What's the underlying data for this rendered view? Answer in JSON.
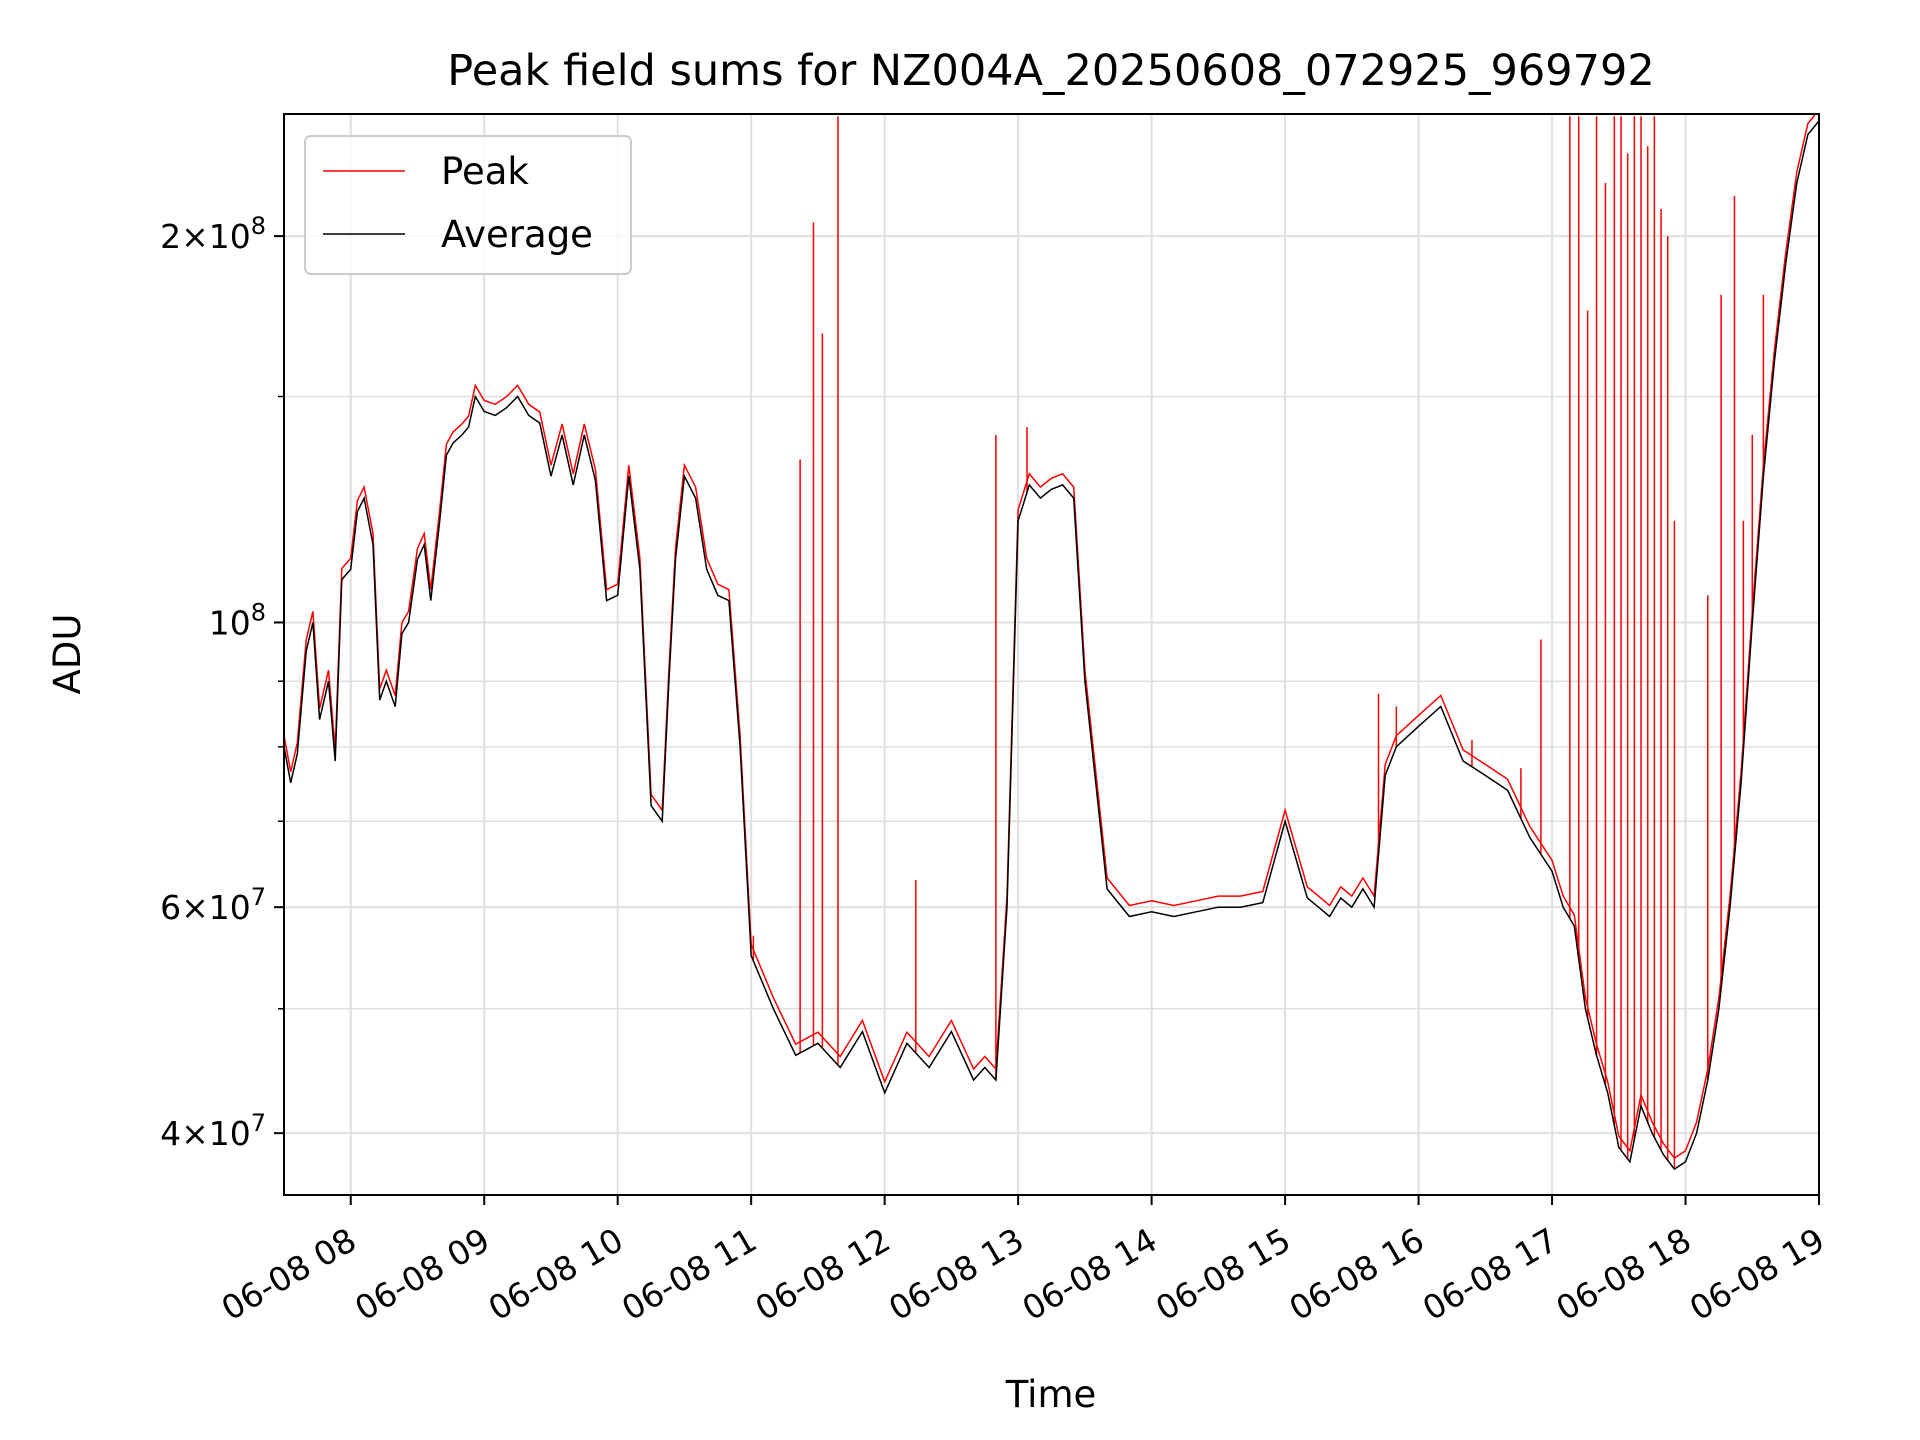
{
  "chart_data": {
    "type": "line",
    "title": "Peak field sums for NZ004A_20250608_072925_969792",
    "xlabel": "Time",
    "ylabel": "ADU",
    "yscale": "log",
    "xlim": [
      "06-08 07:30",
      "06-08 19:00"
    ],
    "ylim": [
      35800000,
      249000000
    ],
    "grid": true,
    "legend": {
      "position": "upper-left",
      "entries": [
        "Peak",
        "Average"
      ]
    },
    "x_ticks": [
      "06-08 08",
      "06-08 09",
      "06-08 10",
      "06-08 11",
      "06-08 12",
      "06-08 13",
      "06-08 14",
      "06-08 15",
      "06-08 16",
      "06-08 17",
      "06-08 18",
      "06-08 19"
    ],
    "y_ticks": [
      {
        "mantissa": "2",
        "exponent": "8",
        "value": 200000000
      },
      {
        "mantissa": "",
        "exponent": "8",
        "value": 100000000
      },
      {
        "mantissa": "6",
        "exponent": "7",
        "value": 60000000
      },
      {
        "mantissa": "4",
        "exponent": "7",
        "value": 40000000
      }
    ],
    "minor_y_values": [
      90000000,
      80000000,
      70000000,
      50000000,
      150000000
    ],
    "colors": {
      "Peak": "#ff0000",
      "Average": "#000000",
      "grid": "#e0e0e0"
    },
    "series": [
      {
        "name": "Average",
        "x": [
          "06-08 07:30",
          "06-08 07:33",
          "06-08 07:36",
          "06-08 07:40",
          "06-08 07:43",
          "06-08 07:46",
          "06-08 07:50",
          "06-08 07:53",
          "06-08 07:56",
          "06-08 08:00",
          "06-08 08:03",
          "06-08 08:06",
          "06-08 08:10",
          "06-08 08:13",
          "06-08 08:16",
          "06-08 08:20",
          "06-08 08:23",
          "06-08 08:26",
          "06-08 08:30",
          "06-08 08:33",
          "06-08 08:36",
          "06-08 08:40",
          "06-08 08:43",
          "06-08 08:46",
          "06-08 08:50",
          "06-08 08:53",
          "06-08 08:56",
          "06-08 09:00",
          "06-08 09:05",
          "06-08 09:10",
          "06-08 09:15",
          "06-08 09:20",
          "06-08 09:25",
          "06-08 09:30",
          "06-08 09:35",
          "06-08 09:40",
          "06-08 09:45",
          "06-08 09:50",
          "06-08 09:55",
          "06-08 10:00",
          "06-08 10:05",
          "06-08 10:10",
          "06-08 10:15",
          "06-08 10:20",
          "06-08 10:23",
          "06-08 10:26",
          "06-08 10:30",
          "06-08 10:35",
          "06-08 10:40",
          "06-08 10:45",
          "06-08 10:50",
          "06-08 10:55",
          "06-08 11:00",
          "06-08 11:10",
          "06-08 11:20",
          "06-08 11:30",
          "06-08 11:40",
          "06-08 11:50",
          "06-08 12:00",
          "06-08 12:10",
          "06-08 12:20",
          "06-08 12:30",
          "06-08 12:40",
          "06-08 12:45",
          "06-08 12:50",
          "06-08 12:55",
          "06-08 13:00",
          "06-08 13:05",
          "06-08 13:10",
          "06-08 13:15",
          "06-08 13:20",
          "06-08 13:25",
          "06-08 13:30",
          "06-08 13:40",
          "06-08 13:50",
          "06-08 14:00",
          "06-08 14:10",
          "06-08 14:20",
          "06-08 14:30",
          "06-08 14:35",
          "06-08 14:40",
          "06-08 14:50",
          "06-08 15:00",
          "06-08 15:10",
          "06-08 15:15",
          "06-08 15:20",
          "06-08 15:25",
          "06-08 15:30",
          "06-08 15:35",
          "06-08 15:40",
          "06-08 15:45",
          "06-08 15:50",
          "06-08 16:00",
          "06-08 16:10",
          "06-08 16:20",
          "06-08 16:30",
          "06-08 16:40",
          "06-08 16:50",
          "06-08 17:00",
          "06-08 17:05",
          "06-08 17:10",
          "06-08 17:15",
          "06-08 17:20",
          "06-08 17:25",
          "06-08 17:30",
          "06-08 17:35",
          "06-08 17:40",
          "06-08 17:45",
          "06-08 17:50",
          "06-08 17:55",
          "06-08 18:00",
          "06-08 18:05",
          "06-08 18:10",
          "06-08 18:15",
          "06-08 18:20",
          "06-08 18:25",
          "06-08 18:30",
          "06-08 18:35",
          "06-08 18:40",
          "06-08 18:45",
          "06-08 18:50",
          "06-08 18:55",
          "06-08 19:00"
        ],
        "y": [
          80000000,
          75000000,
          79000000,
          95000000,
          100000000,
          84000000,
          90000000,
          78000000,
          108000000,
          110000000,
          122000000,
          125000000,
          115000000,
          87000000,
          90000000,
          86000000,
          98000000,
          100000000,
          112000000,
          115000000,
          104000000,
          120000000,
          135000000,
          138000000,
          140000000,
          142000000,
          150000000,
          146000000,
          145000000,
          147000000,
          150000000,
          145000000,
          143000000,
          130000000,
          140000000,
          128000000,
          140000000,
          129000000,
          104000000,
          105000000,
          130000000,
          110000000,
          72000000,
          70000000,
          90000000,
          112000000,
          130000000,
          125000000,
          110000000,
          105000000,
          104000000,
          80000000,
          55000000,
          50000000,
          46000000,
          47000000,
          45000000,
          48000000,
          43000000,
          47000000,
          45000000,
          48000000,
          44000000,
          45000000,
          44000000,
          60000000,
          120000000,
          128000000,
          125000000,
          127000000,
          128000000,
          125000000,
          90000000,
          62000000,
          59000000,
          59500000,
          59000000,
          59500000,
          60000000,
          60000000,
          60000000,
          60500000,
          70000000,
          61000000,
          60000000,
          59000000,
          61000000,
          60000000,
          62000000,
          60000000,
          76000000,
          80000000,
          83000000,
          86000000,
          78000000,
          76000000,
          74000000,
          68000000,
          64000000,
          60000000,
          58000000,
          50000000,
          46000000,
          43000000,
          39000000,
          38000000,
          42000000,
          40000000,
          38500000,
          37500000,
          38000000,
          40000000,
          44000000,
          50000000,
          60000000,
          75000000,
          100000000,
          130000000,
          160000000,
          190000000,
          220000000,
          240000000,
          246000000
        ]
      },
      {
        "name": "Peak",
        "spikes": [
          {
            "x": "06-08 11:01",
            "y": 57000000
          },
          {
            "x": "06-08 11:22",
            "y": 134000000
          },
          {
            "x": "06-08 11:28",
            "y": 205000000
          },
          {
            "x": "06-08 11:32",
            "y": 168000000
          },
          {
            "x": "06-08 11:39",
            "y": 248000000
          },
          {
            "x": "06-08 12:14",
            "y": 63000000
          },
          {
            "x": "06-08 12:50",
            "y": 140000000
          },
          {
            "x": "06-08 13:04",
            "y": 142000000
          },
          {
            "x": "06-08 15:42",
            "y": 88000000
          },
          {
            "x": "06-08 15:50",
            "y": 86000000
          },
          {
            "x": "06-08 16:24",
            "y": 81000000
          },
          {
            "x": "06-08 16:46",
            "y": 77000000
          },
          {
            "x": "06-08 16:55",
            "y": 97000000
          },
          {
            "x": "06-08 17:08",
            "y": 248000000
          },
          {
            "x": "06-08 17:12",
            "y": 248000000
          },
          {
            "x": "06-08 17:16",
            "y": 175000000
          },
          {
            "x": "06-08 17:20",
            "y": 248000000
          },
          {
            "x": "06-08 17:24",
            "y": 220000000
          },
          {
            "x": "06-08 17:28",
            "y": 248000000
          },
          {
            "x": "06-08 17:31",
            "y": 248000000
          },
          {
            "x": "06-08 17:34",
            "y": 232000000
          },
          {
            "x": "06-08 17:37",
            "y": 248000000
          },
          {
            "x": "06-08 17:40",
            "y": 248000000
          },
          {
            "x": "06-08 17:43",
            "y": 235000000
          },
          {
            "x": "06-08 17:46",
            "y": 248000000
          },
          {
            "x": "06-08 17:49",
            "y": 210000000
          },
          {
            "x": "06-08 17:52",
            "y": 200000000
          },
          {
            "x": "06-08 17:55",
            "y": 120000000
          },
          {
            "x": "06-08 18:10",
            "y": 105000000
          },
          {
            "x": "06-08 18:16",
            "y": 180000000
          },
          {
            "x": "06-08 18:22",
            "y": 215000000
          },
          {
            "x": "06-08 18:26",
            "y": 120000000
          },
          {
            "x": "06-08 18:30",
            "y": 140000000
          },
          {
            "x": "06-08 18:35",
            "y": 180000000
          },
          {
            "x": "06-08 18:40",
            "y": 160000000
          }
        ]
      }
    ]
  }
}
